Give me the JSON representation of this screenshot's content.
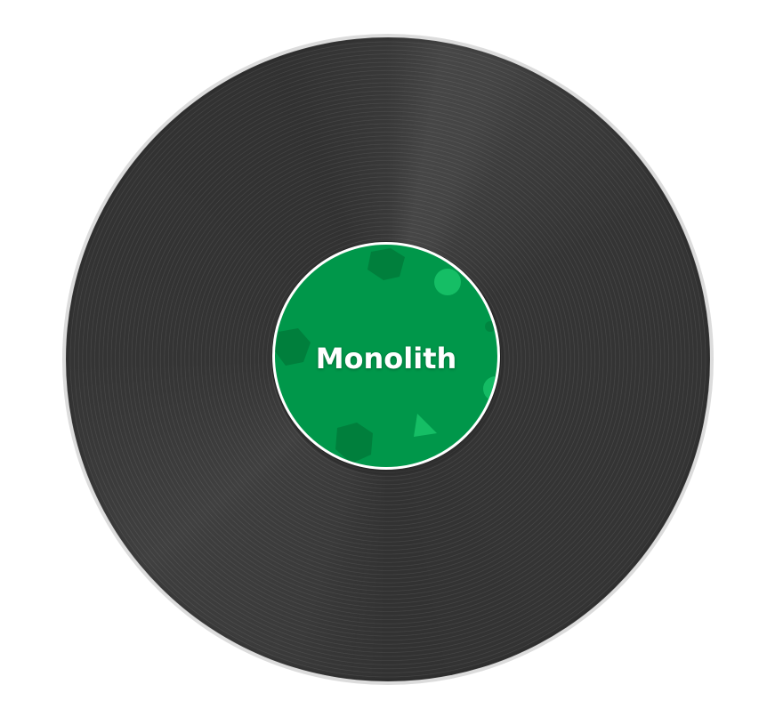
{
  "record": {
    "label_text": "Monolith",
    "label_color": "#00974a",
    "vinyl_color": "#343434",
    "groove_highlight": "#4a4a4a",
    "rim_color": "#dcdcdc",
    "label_border_color": "#ffffff",
    "decorations": [
      "dark-blob-top",
      "light-dot-right",
      "dark-blob-left",
      "light-dot-edge",
      "triangle-bottom",
      "dark-blob-bottom"
    ]
  }
}
